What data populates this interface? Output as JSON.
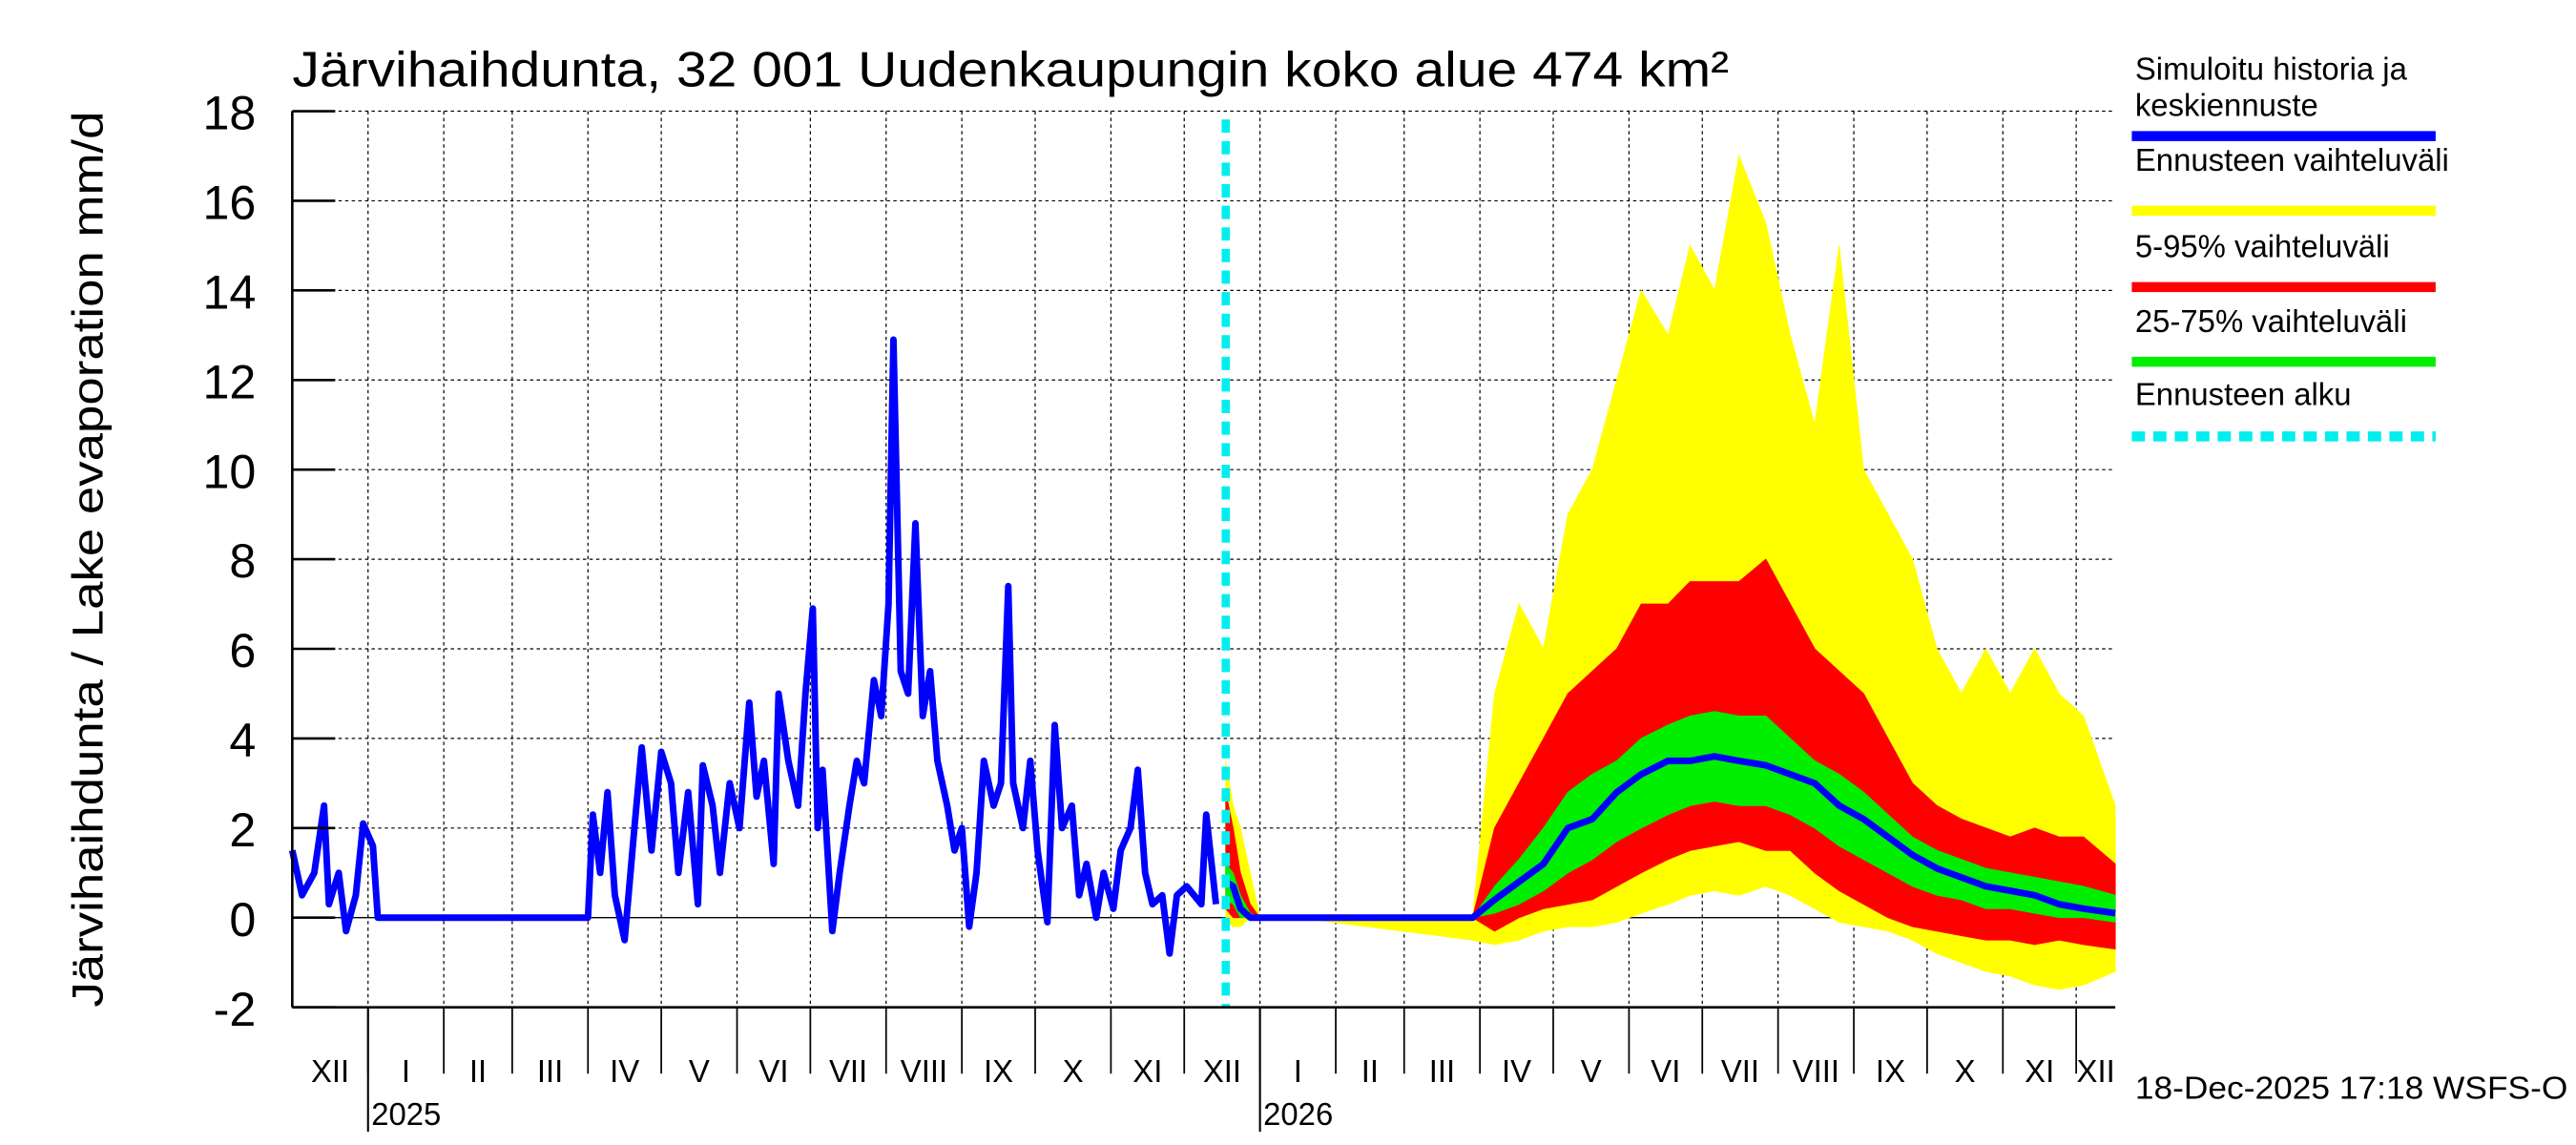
{
  "chart_data": {
    "type": "area",
    "title": "Järvihaihdunta, 32 001 Uudenkaupungin koko alue 474 km²",
    "ylabel": "Järvihaihdunta / Lake evaporation   mm/d",
    "xlabel": "",
    "x_units": "days since 2024-12-01",
    "xlim": [
      0,
      746
    ],
    "ylim": [
      -2,
      18
    ],
    "yticks": [
      -2,
      0,
      2,
      4,
      6,
      8,
      10,
      12,
      14,
      16,
      18
    ],
    "grid": true,
    "months": [
      {
        "label": "XII",
        "start": 0
      },
      {
        "label": "I",
        "start": 31
      },
      {
        "label": "II",
        "start": 62
      },
      {
        "label": "III",
        "start": 90
      },
      {
        "label": "IV",
        "start": 121
      },
      {
        "label": "V",
        "start": 151
      },
      {
        "label": "VI",
        "start": 182
      },
      {
        "label": "VII",
        "start": 212
      },
      {
        "label": "VIII",
        "start": 243
      },
      {
        "label": "IX",
        "start": 274
      },
      {
        "label": "X",
        "start": 304
      },
      {
        "label": "XI",
        "start": 335
      },
      {
        "label": "XII",
        "start": 365
      },
      {
        "label": "I",
        "start": 396
      },
      {
        "label": "II",
        "start": 427
      },
      {
        "label": "III",
        "start": 455
      },
      {
        "label": "IV",
        "start": 486
      },
      {
        "label": "V",
        "start": 516
      },
      {
        "label": "VI",
        "start": 547
      },
      {
        "label": "VII",
        "start": 577
      },
      {
        "label": "VIII",
        "start": 608
      },
      {
        "label": "IX",
        "start": 639
      },
      {
        "label": "X",
        "start": 669
      },
      {
        "label": "XI",
        "start": 700
      },
      {
        "label": "XII",
        "start": 730
      }
    ],
    "years": [
      {
        "label": "2025",
        "start": 31
      },
      {
        "label": "2026",
        "start": 396
      }
    ],
    "forecast_start": 382,
    "history": {
      "name": "Simuloitu historia ja keskiennuste",
      "color": "#0000ff",
      "x": [
        0,
        4,
        9,
        13,
        15,
        19,
        22,
        26,
        29,
        33,
        35,
        121,
        123,
        126,
        129,
        132,
        136,
        140,
        143,
        147,
        151,
        155,
        158,
        162,
        166,
        168,
        172,
        175,
        179,
        183,
        187,
        190,
        193,
        197,
        199,
        203,
        207,
        210,
        213,
        215,
        217,
        221,
        224,
        228,
        231,
        234,
        238,
        241,
        244,
        246,
        249,
        252,
        255,
        258,
        261,
        264,
        268,
        271,
        274,
        277,
        280,
        283,
        287,
        290,
        293,
        295,
        299,
        302,
        305,
        309,
        312,
        315,
        319,
        322,
        325,
        329,
        332,
        336,
        339,
        343,
        346,
        349,
        352,
        356,
        359,
        362,
        366,
        369,
        372,
        374,
        378
      ],
      "y": [
        1.5,
        0.5,
        1,
        2.5,
        0.3,
        1,
        -0.3,
        0.5,
        2.1,
        1.6,
        0,
        0,
        2.3,
        1,
        2.8,
        0.5,
        -0.5,
        2,
        3.8,
        1.5,
        3.7,
        3,
        1,
        2.8,
        0.3,
        3.4,
        2.5,
        1,
        3,
        2,
        4.8,
        2.7,
        3.5,
        1.2,
        5,
        3.5,
        2.5,
        5,
        6.9,
        2,
        3.3,
        -0.3,
        1,
        2.5,
        3.5,
        3,
        5.3,
        4.5,
        7,
        12.9,
        5.5,
        5,
        8.8,
        4.5,
        5.5,
        3.5,
        2.5,
        1.5,
        2,
        -0.2,
        1,
        3.5,
        2.5,
        3,
        7.4,
        3,
        2,
        3.5,
        1.5,
        -0.1,
        4.3,
        2,
        2.5,
        0.5,
        1.2,
        0,
        1,
        0.2,
        1.5,
        2,
        3.3,
        1,
        0.3,
        0.5,
        -0.8,
        0.5,
        0.7,
        0.5,
        0.3,
        2.3,
        0.3
      ]
    },
    "forecast": {
      "x": [
        382,
        385,
        388,
        392,
        396,
        411,
        483,
        492,
        502,
        512,
        522,
        532,
        542,
        552,
        563,
        572,
        582,
        592,
        603,
        613,
        623,
        633,
        643,
        653,
        663,
        673,
        683,
        693,
        703,
        713,
        723,
        733,
        746
      ],
      "max": [
        3.5,
        2.5,
        2,
        1,
        0,
        0,
        0,
        5,
        7,
        6,
        9,
        10,
        12,
        14,
        13,
        15,
        14,
        17,
        15.5,
        13,
        11,
        15,
        10,
        9,
        8,
        6,
        5,
        6,
        5,
        6,
        5,
        4.5,
        2.5
      ],
      "p95": [
        2.8,
        2,
        1,
        0.3,
        0,
        0,
        0,
        2,
        3,
        4,
        5,
        5.5,
        6,
        7,
        7,
        7.5,
        7.5,
        7.5,
        8,
        7,
        6,
        5.5,
        5,
        4,
        3,
        2.5,
        2.2,
        2,
        1.8,
        2,
        1.8,
        1.8,
        1.2
      ],
      "p75": [
        1.2,
        1,
        0.5,
        0.1,
        0,
        0,
        0,
        0.7,
        1.3,
        2,
        2.8,
        3.2,
        3.5,
        4,
        4.3,
        4.5,
        4.6,
        4.5,
        4.5,
        4,
        3.5,
        3.2,
        2.8,
        2.3,
        1.8,
        1.5,
        1.3,
        1.1,
        1,
        0.9,
        0.8,
        0.7,
        0.5
      ],
      "median": [
        0.8,
        0.7,
        0.2,
        0,
        0,
        0,
        0,
        0.4,
        0.8,
        1.2,
        2,
        2.2,
        2.8,
        3.2,
        3.5,
        3.5,
        3.6,
        3.5,
        3.4,
        3.2,
        3,
        2.5,
        2.2,
        1.8,
        1.4,
        1.1,
        0.9,
        0.7,
        0.6,
        0.5,
        0.3,
        0.2,
        0.1
      ],
      "p25": [
        0.4,
        0.3,
        0,
        0,
        0,
        0,
        0,
        0.1,
        0.3,
        0.6,
        1,
        1.3,
        1.7,
        2,
        2.3,
        2.5,
        2.6,
        2.5,
        2.5,
        2.3,
        2,
        1.6,
        1.3,
        1,
        0.7,
        0.5,
        0.4,
        0.2,
        0.2,
        0.1,
        0,
        0,
        -0.1
      ],
      "p5": [
        0.2,
        0,
        0,
        0,
        0,
        0,
        0,
        -0.3,
        0,
        0.2,
        0.3,
        0.4,
        0.7,
        1,
        1.3,
        1.5,
        1.6,
        1.7,
        1.5,
        1.5,
        1,
        0.6,
        0.3,
        0,
        -0.2,
        -0.3,
        -0.4,
        -0.5,
        -0.5,
        -0.6,
        -0.5,
        -0.6,
        -0.7
      ],
      "min": [
        0,
        -0.2,
        -0.2,
        0,
        0,
        0,
        -0.5,
        -0.6,
        -0.5,
        -0.3,
        -0.2,
        -0.2,
        -0.1,
        0.1,
        0.3,
        0.5,
        0.6,
        0.5,
        0.7,
        0.5,
        0.2,
        -0.1,
        -0.2,
        -0.3,
        -0.5,
        -0.8,
        -1,
        -1.2,
        -1.3,
        -1.5,
        -1.6,
        -1.5,
        -1.2
      ]
    },
    "legend": [
      {
        "label": "Simuloitu historia ja",
        "label2": "keskiennuste",
        "color": "#0000ff",
        "style": "solid"
      },
      {
        "label": "Ennusteen vaihteluväli",
        "color": "#ffff00",
        "style": "solid"
      },
      {
        "label": "5-95% vaihteluväli",
        "color": "#ff0000",
        "style": "solid"
      },
      {
        "label": "25-75% vaihteluväli",
        "color": "#00ee00",
        "style": "solid"
      },
      {
        "label": "Ennusteen alku",
        "color": "#00eeee",
        "style": "dashed"
      }
    ],
    "legend_position": "right",
    "footer": "18-Dec-2025 17:18 WSFS-O"
  }
}
